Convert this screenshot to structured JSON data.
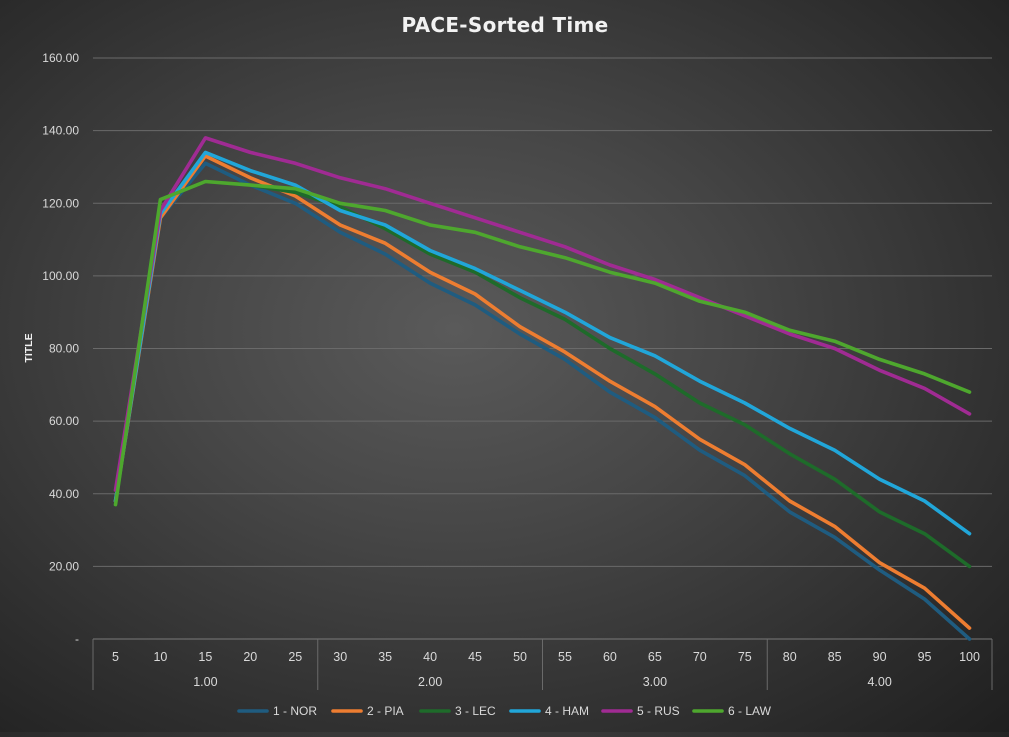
{
  "chart_data": {
    "type": "line",
    "title": "PACE-Sorted Time",
    "xlabel": "",
    "ylabel": "TITLE",
    "categories": [
      "5",
      "10",
      "15",
      "20",
      "25",
      "30",
      "35",
      "40",
      "45",
      "50",
      "55",
      "60",
      "65",
      "70",
      "75",
      "80",
      "85",
      "90",
      "95",
      "100"
    ],
    "category_groups": [
      {
        "label": "1.00",
        "span": 5
      },
      {
        "label": "2.00",
        "span": 5
      },
      {
        "label": "3.00",
        "span": 5
      },
      {
        "label": "4.00",
        "span": 5
      }
    ],
    "ylim": [
      0,
      160
    ],
    "yticks": [
      {
        "value": 0,
        "label": "-"
      },
      {
        "value": 20,
        "label": "20.00"
      },
      {
        "value": 40,
        "label": "40.00"
      },
      {
        "value": 60,
        "label": "60.00"
      },
      {
        "value": 80,
        "label": "80.00"
      },
      {
        "value": 100,
        "label": "100.00"
      },
      {
        "value": 120,
        "label": "120.00"
      },
      {
        "value": 140,
        "label": "140.00"
      },
      {
        "value": 160,
        "label": "160.00"
      }
    ],
    "grid": true,
    "legend_position": "bottom",
    "series": [
      {
        "name": "1 - NOR",
        "color": "#1f5c80",
        "values": [
          38,
          116,
          131,
          125,
          120,
          112,
          106,
          98,
          92,
          84,
          77,
          68,
          61,
          52,
          45,
          35,
          28,
          19,
          11,
          0
        ]
      },
      {
        "name": "2 - PIA",
        "color": "#ed7d31",
        "values": [
          38,
          116,
          133,
          127,
          122,
          114,
          109,
          101,
          95,
          86,
          79,
          71,
          64,
          55,
          48,
          38,
          31,
          21,
          14,
          3
        ]
      },
      {
        "name": "3 - LEC",
        "color": "#1e6b2a",
        "values": [
          37,
          121,
          126,
          125,
          123,
          119,
          113,
          106,
          101,
          94,
          88,
          80,
          73,
          65,
          59,
          51,
          44,
          35,
          29,
          20
        ]
      },
      {
        "name": "4 - HAM",
        "color": "#21a6d9",
        "values": [
          38,
          117,
          134,
          129,
          125,
          118,
          114,
          107,
          102,
          96,
          90,
          83,
          78,
          71,
          65,
          58,
          52,
          44,
          38,
          29
        ]
      },
      {
        "name": "5 - RUS",
        "color": "#a02b93",
        "values": [
          41,
          118,
          138,
          134,
          131,
          127,
          124,
          120,
          116,
          112,
          108,
          103,
          99,
          94,
          89,
          84,
          80,
          74,
          69,
          62
        ]
      },
      {
        "name": "6 - LAW",
        "color": "#4ea72e",
        "values": [
          37,
          121,
          126,
          125,
          124,
          120,
          118,
          114,
          112,
          108,
          105,
          101,
          98,
          93,
          90,
          85,
          82,
          77,
          73,
          68
        ]
      }
    ]
  }
}
